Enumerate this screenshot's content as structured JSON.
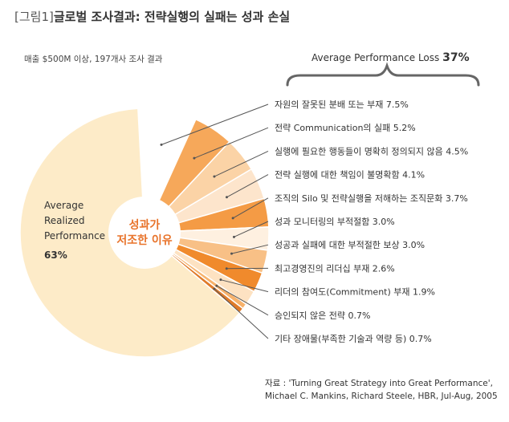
{
  "header": {
    "tag": "[그림1]",
    "title": "글로벌 조사결과: 전략실행의 실패는 성과 손실"
  },
  "subtitle": "매출 $500M 이상, 197개사 조사 결과",
  "loss_summary": {
    "label": "Average Performance Loss",
    "value": "37%"
  },
  "center_label": {
    "line1": "성과가",
    "line2": "저조한 이유"
  },
  "source": {
    "line1": "자료 : 'Turning Great Strategy into Great Performance',",
    "line2": "Michael C. Mankins, Richard Steele, HBR, Jul-Aug, 2005"
  },
  "chart_data": {
    "type": "pie",
    "total_percent": 100,
    "main_slice": {
      "name_lines": [
        "Average",
        "Realized",
        "Performance"
      ],
      "value_label": "63%",
      "value": 63,
      "color": "#fdebc8"
    },
    "slices": [
      {
        "label": "자원의 잘못된 분배 또는 부재",
        "value": 7.5,
        "value_label": "7.5%",
        "color": "#ffffff"
      },
      {
        "label": "전략 Communication의 실패",
        "value": 5.2,
        "value_label": "5.2%",
        "color": "#f6a85a"
      },
      {
        "label": "실행에 필요한 행동들이 명확히 정의되지 않음",
        "value": 4.5,
        "value_label": "4.5%",
        "color": "#fbd3a6"
      },
      {
        "label": "전략 실행에 대한 책임이 불명확함",
        "value": 4.1,
        "value_label": "4.1%",
        "color": "#fde5cc"
      },
      {
        "label": "조직의 Silo 및 전략실행을 저해하는 조직문화",
        "value": 3.7,
        "value_label": "3.7%",
        "color": "#f49b45"
      },
      {
        "label": "성과 모니터링의 부적절함",
        "value": 3.0,
        "value_label": "3.0%",
        "color": "#fef0e0"
      },
      {
        "label": "성공과 실패에 대한 부적절한 보상",
        "value": 3.0,
        "value_label": "3.0%",
        "color": "#f8c086"
      },
      {
        "label": "최고경영진의 리더십 부재",
        "value": 2.6,
        "value_label": "2.6%",
        "color": "#f08a2c"
      },
      {
        "label": "리더의 참여도(Commitment) 부재",
        "value": 1.9,
        "value_label": "1.9%",
        "color": "#fde2c2"
      },
      {
        "label": "승인되지 않은 전략",
        "value": 0.7,
        "value_label": "0.7%",
        "color": "#f7b26c"
      },
      {
        "label": "기타 장애물(부족한 기술과 역량 등)",
        "value": 0.7,
        "value_label": "0.7%",
        "color": "#e07b2a"
      }
    ],
    "colors": {
      "stroke": "#ffffff",
      "leader": "#555555",
      "center_text": "#e8732a",
      "brace": "#666666"
    }
  }
}
